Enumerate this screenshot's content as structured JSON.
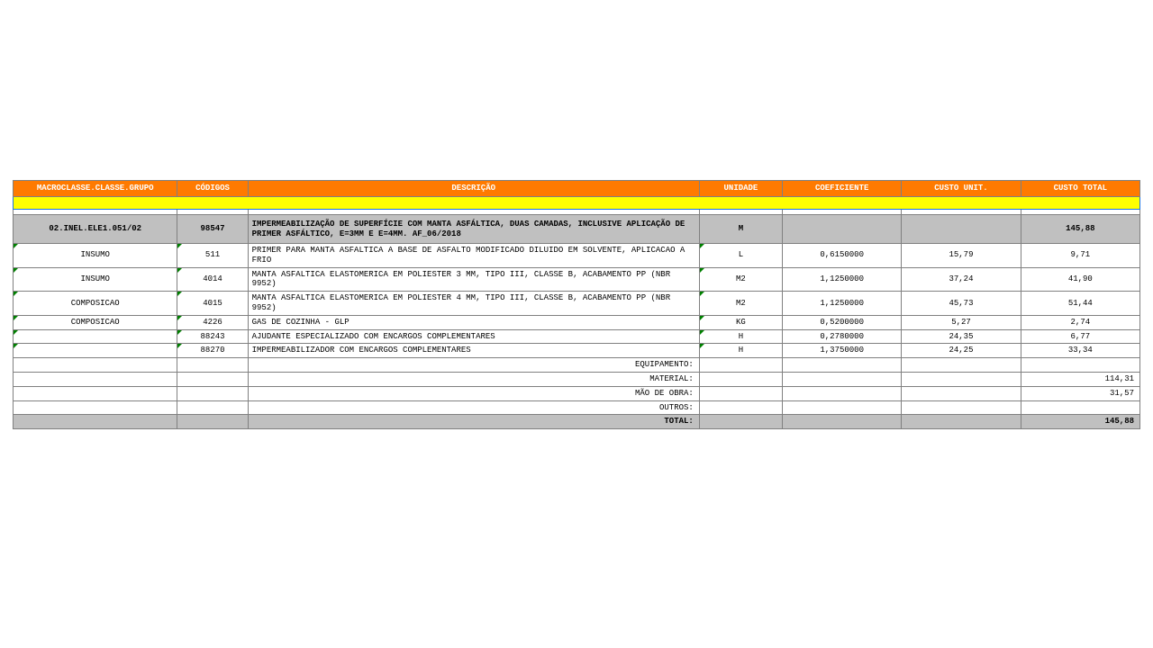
{
  "headers": {
    "macro": "MACROCLASSE.CLASSE.GRUPO",
    "cod": "CÓDIGOS",
    "desc": "DESCRIÇÃO",
    "unid": "UNIDADE",
    "coef": "COEFICIENTE",
    "unit": "CUSTO UNIT.",
    "total": "CUSTO TOTAL"
  },
  "group": {
    "macro": "02.INEL.ELE1.051/02",
    "cod": "98547",
    "desc": "IMPERMEABILIZAÇÃO DE SUPERFÍCIE COM MANTA ASFÁLTICA, DUAS CAMADAS, INCLUSIVE APLICAÇÃO DE PRIMER ASFÁLTICO, E=3MM E E=4MM. AF_06/2018",
    "unid": "M",
    "total": "145,88"
  },
  "rows": [
    {
      "macro": "INSUMO",
      "cod": "511",
      "desc": "PRIMER PARA MANTA ASFALTICA A BASE DE ASFALTO MODIFICADO DILUIDO EM SOLVENTE, APLICACAO A FRIO",
      "unid": "L",
      "coef": "0,6150000",
      "unit": "15,79",
      "total": "9,71",
      "tall": true
    },
    {
      "macro": "INSUMO",
      "cod": "4014",
      "desc": "MANTA ASFALTICA ELASTOMERICA EM POLIESTER 3 MM, TIPO III, CLASSE B, ACABAMENTO PP (NBR 9952)",
      "unid": "M2",
      "coef": "1,1250000",
      "unit": "37,24",
      "total": "41,90",
      "tall": true
    },
    {
      "macro": "COMPOSICAO",
      "cod": "4015",
      "desc": "MANTA ASFALTICA ELASTOMERICA EM POLIESTER 4 MM, TIPO III, CLASSE B, ACABAMENTO PP (NBR 9952)",
      "unid": "M2",
      "coef": "1,1250000",
      "unit": "45,73",
      "total": "51,44",
      "tall": true
    },
    {
      "macro": "COMPOSICAO",
      "cod": "4226",
      "desc": "GAS DE COZINHA - GLP",
      "unid": "KG",
      "coef": "0,5200000",
      "unit": "5,27",
      "total": "2,74",
      "tall": false
    },
    {
      "macro": "",
      "cod": "88243",
      "desc": "AJUDANTE ESPECIALIZADO COM ENCARGOS COMPLEMENTARES",
      "unid": "H",
      "coef": "0,2780000",
      "unit": "24,35",
      "total": "6,77",
      "tall": false
    },
    {
      "macro": "",
      "cod": "88270",
      "desc": "IMPERMEABILIZADOR COM ENCARGOS COMPLEMENTARES",
      "unid": "H",
      "coef": "1,3750000",
      "unit": "24,25",
      "total": "33,34",
      "tall": false
    }
  ],
  "summary": [
    {
      "label": "EQUIPAMENTO:",
      "total": ""
    },
    {
      "label": "MATERIAL:",
      "total": "114,31"
    },
    {
      "label": "MÃO DE OBRA:",
      "total": "31,57"
    },
    {
      "label": "OUTROS:",
      "total": ""
    }
  ],
  "final": {
    "label": "TOTAL:",
    "total": "145,88"
  }
}
